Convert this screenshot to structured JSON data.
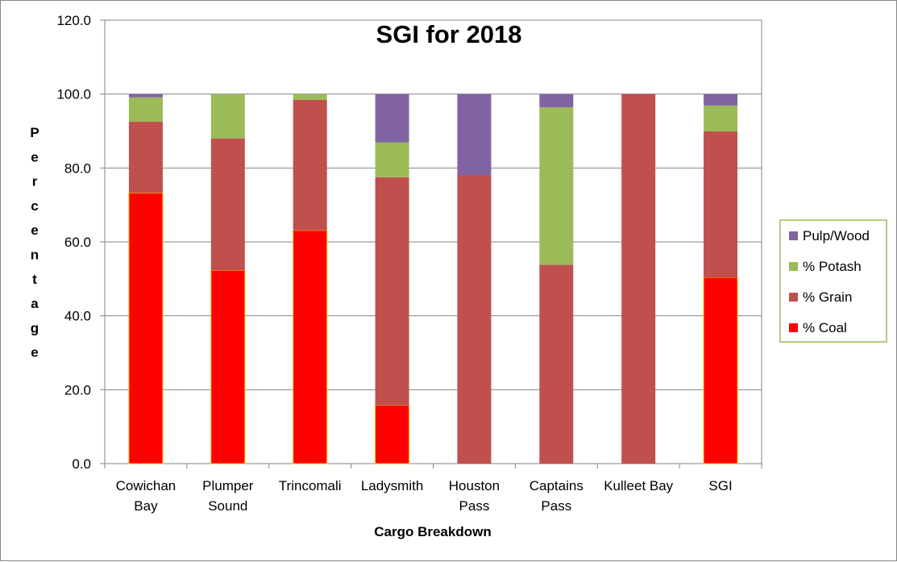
{
  "chart_data": {
    "type": "bar",
    "stacked": true,
    "title": "SGI for 2018",
    "xlabel": "Cargo Breakdown",
    "ylabel": "Percentage",
    "ylim": [
      0,
      120
    ],
    "yticks": [
      "0.0",
      "20.0",
      "40.0",
      "60.0",
      "80.0",
      "100.0",
      "120.0"
    ],
    "grid": true,
    "legend_position": "right",
    "categories": [
      [
        "Cowichan",
        "Bay"
      ],
      [
        "Plumper",
        "Sound"
      ],
      [
        "Trincomali"
      ],
      [
        "Ladysmith"
      ],
      [
        "Houston",
        "Pass"
      ],
      [
        "Captains",
        "Pass"
      ],
      [
        "Kulleet Bay"
      ],
      [
        "SGI"
      ]
    ],
    "series": [
      {
        "name": "% Coal",
        "color": "#ff0000",
        "values": [
          73.2,
          52.3,
          63.1,
          15.8,
          0,
          0,
          0,
          50.4
        ]
      },
      {
        "name": "% Grain",
        "color": "#c0504d",
        "values": [
          19.3,
          35.7,
          35.3,
          61.7,
          78.1,
          53.8,
          100,
          39.5
        ]
      },
      {
        "name": "% Potash",
        "color": "#9bbb59",
        "values": [
          6.6,
          12.0,
          1.6,
          9.4,
          0,
          42.6,
          0,
          7.0
        ]
      },
      {
        "name": "Pulp/Wood",
        "color": "#8064a2",
        "values": [
          0.9,
          0,
          0,
          13.1,
          21.9,
          3.6,
          0,
          3.1
        ]
      }
    ],
    "legend_order": [
      "Pulp/Wood",
      "% Potash",
      "% Grain",
      "% Coal"
    ]
  }
}
